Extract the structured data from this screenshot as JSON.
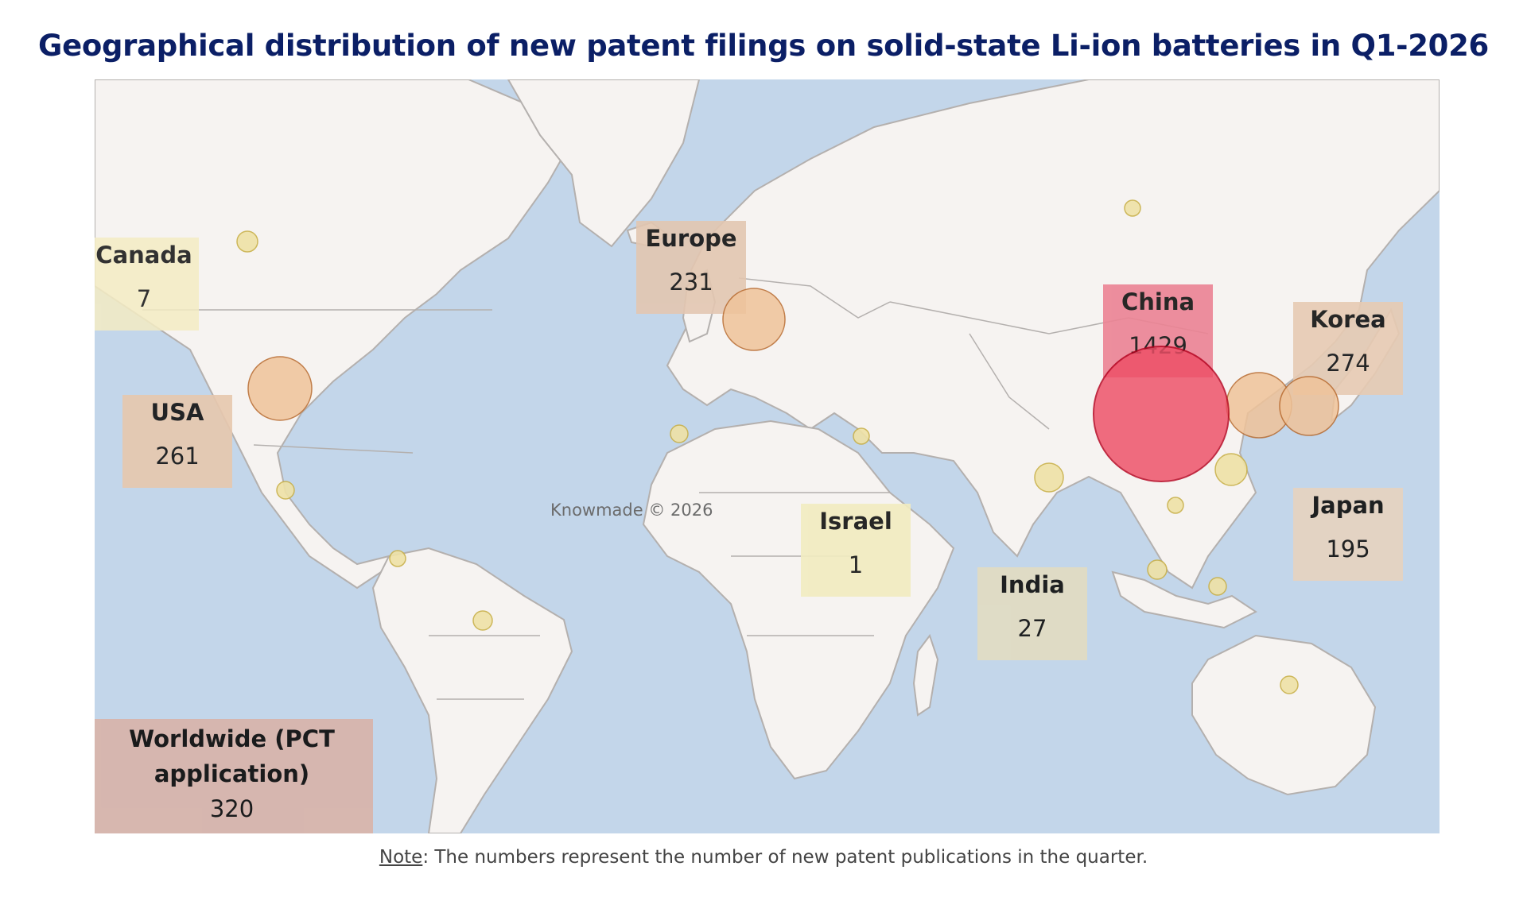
{
  "title": "Geographical distribution of new patent filings on solid-state Li-ion batteries in Q1-2026",
  "watermark": "Knowmade © 2026",
  "note": {
    "prefix": "Note",
    "text": ": The numbers represent the number of new patent publications in the quarter."
  },
  "colors": {
    "ocean": "#c3d6ea",
    "land": "#f6f3f1",
    "border": "#b4b0ae",
    "title": "#0b1f66",
    "bubble_small": "#efe2a6",
    "bubble_medium": "#efc39a",
    "bubble_large": "#ee4e66"
  },
  "regions": [
    {
      "id": "canada",
      "name": "Canada",
      "count": "7",
      "color": "#f4ecc4"
    },
    {
      "id": "usa",
      "name": "USA",
      "count": "261",
      "color": "#e7c8ae"
    },
    {
      "id": "europe",
      "name": "Europe",
      "count": "231",
      "color": "#e3c7b1"
    },
    {
      "id": "israel",
      "name": "Israel",
      "count": "1",
      "color": "#f2ecc0"
    },
    {
      "id": "india",
      "name": "India",
      "count": "27",
      "color": "#e2dcc2"
    },
    {
      "id": "china",
      "name": "China",
      "count": "1429",
      "color": "#ec8394"
    },
    {
      "id": "korea",
      "name": "Korea",
      "count": "274",
      "color": "#e7cbb3"
    },
    {
      "id": "japan",
      "name": "Japan",
      "count": "195",
      "color": "#e6d3c0"
    },
    {
      "id": "worldwide",
      "name": "Worldwide (PCT application)",
      "name_line1": "Worldwide (PCT",
      "name_line2": "application)",
      "count": "320",
      "color": "#d8b5ac"
    }
  ]
}
